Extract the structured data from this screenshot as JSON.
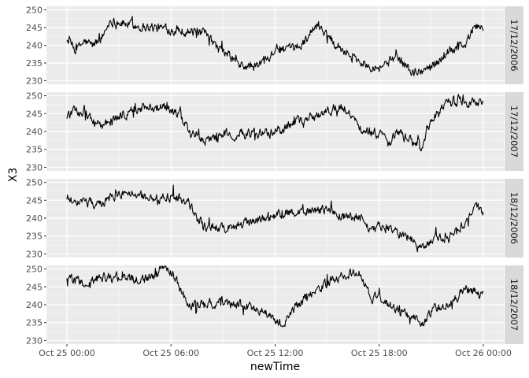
{
  "chart_data": {
    "type": "line",
    "facet_layout": "vertical strips on right",
    "xlabel": "newTime",
    "ylabel": "X3",
    "x_range": [
      "2023-10-25T00:00",
      "2023-10-26T00:00"
    ],
    "x_ticks": [
      "Oct 25 00:00",
      "Oct 25 06:00",
      "Oct 25 12:00",
      "Oct 25 18:00",
      "Oct 26 00:00"
    ],
    "ylim": [
      229,
      251
    ],
    "y_ticks": [
      230,
      235,
      240,
      245,
      250
    ],
    "grid": true,
    "line_color": "#000000",
    "panel_background": "#ebebeb",
    "strip_background": "#d9d9d9",
    "panels": [
      {
        "label": "17/12/2006",
        "hours": [
          0,
          0.5,
          1,
          1.5,
          2,
          2.5,
          3,
          4,
          5,
          6,
          7,
          8,
          8.5,
          9,
          9.5,
          10,
          11,
          12,
          13,
          13.5,
          14,
          14.5,
          15,
          16,
          17,
          18,
          19,
          20,
          21,
          22,
          23,
          23.5,
          24
        ],
        "values": [
          242,
          238.5,
          241,
          240,
          242,
          247,
          246.5,
          245.5,
          245,
          244.5,
          244,
          243,
          240,
          238,
          236.5,
          234,
          234,
          239,
          238.5,
          240,
          243.5,
          246,
          243,
          238.5,
          235,
          234,
          236.5,
          232,
          234,
          238.5,
          240.5,
          245.5,
          245
        ]
      },
      {
        "label": "17/12/2007",
        "hours": [
          0,
          0.5,
          1,
          1.5,
          2,
          3,
          4,
          5,
          6,
          6.5,
          7,
          8,
          9,
          10,
          11,
          12,
          13,
          14,
          15,
          16,
          17,
          17.5,
          18,
          18.5,
          19,
          20,
          20.5,
          21,
          22,
          23,
          24
        ],
        "values": [
          244.5,
          245.5,
          246,
          243,
          241.5,
          244,
          246.5,
          247,
          246,
          244.5,
          240,
          237,
          239,
          239.5,
          239,
          240,
          242,
          244,
          246,
          246.5,
          241,
          240,
          239.5,
          236,
          240,
          237,
          236,
          243,
          248.5,
          248.5,
          248.5
        ]
      },
      {
        "label": "18/12/2006",
        "hours": [
          0,
          0.5,
          1,
          2,
          3,
          4,
          5,
          6,
          7,
          7.5,
          8,
          9,
          10,
          11,
          12,
          13,
          14,
          15,
          16,
          17,
          17.5,
          18,
          19,
          20,
          20.5,
          21,
          22,
          23,
          23.5,
          24
        ],
        "values": [
          246,
          244,
          244.5,
          244,
          247,
          246.5,
          245.5,
          246,
          245,
          240,
          237.5,
          237.5,
          238,
          239.5,
          240.5,
          242,
          241.5,
          242.5,
          240.5,
          240,
          237,
          237.5,
          236,
          234,
          231.5,
          234,
          235,
          239,
          244,
          241
        ]
      },
      {
        "label": "18/12/2007",
        "hours": [
          0,
          0.5,
          1,
          2,
          3,
          4,
          5,
          5.5,
          6,
          6.5,
          7,
          8,
          9,
          10,
          11,
          12,
          12.5,
          13,
          14,
          15,
          16,
          17,
          17.5,
          18,
          19,
          20,
          20.5,
          21,
          22,
          23,
          24
        ],
        "values": [
          248,
          246.5,
          246,
          247.5,
          247.5,
          247,
          248,
          251,
          250,
          245,
          239.5,
          240.5,
          240.5,
          240,
          239,
          236,
          234,
          238.5,
          243,
          246,
          249,
          248.5,
          242,
          241.5,
          238.5,
          236.5,
          234.5,
          238.5,
          240,
          244.5,
          242.5
        ]
      }
    ]
  }
}
